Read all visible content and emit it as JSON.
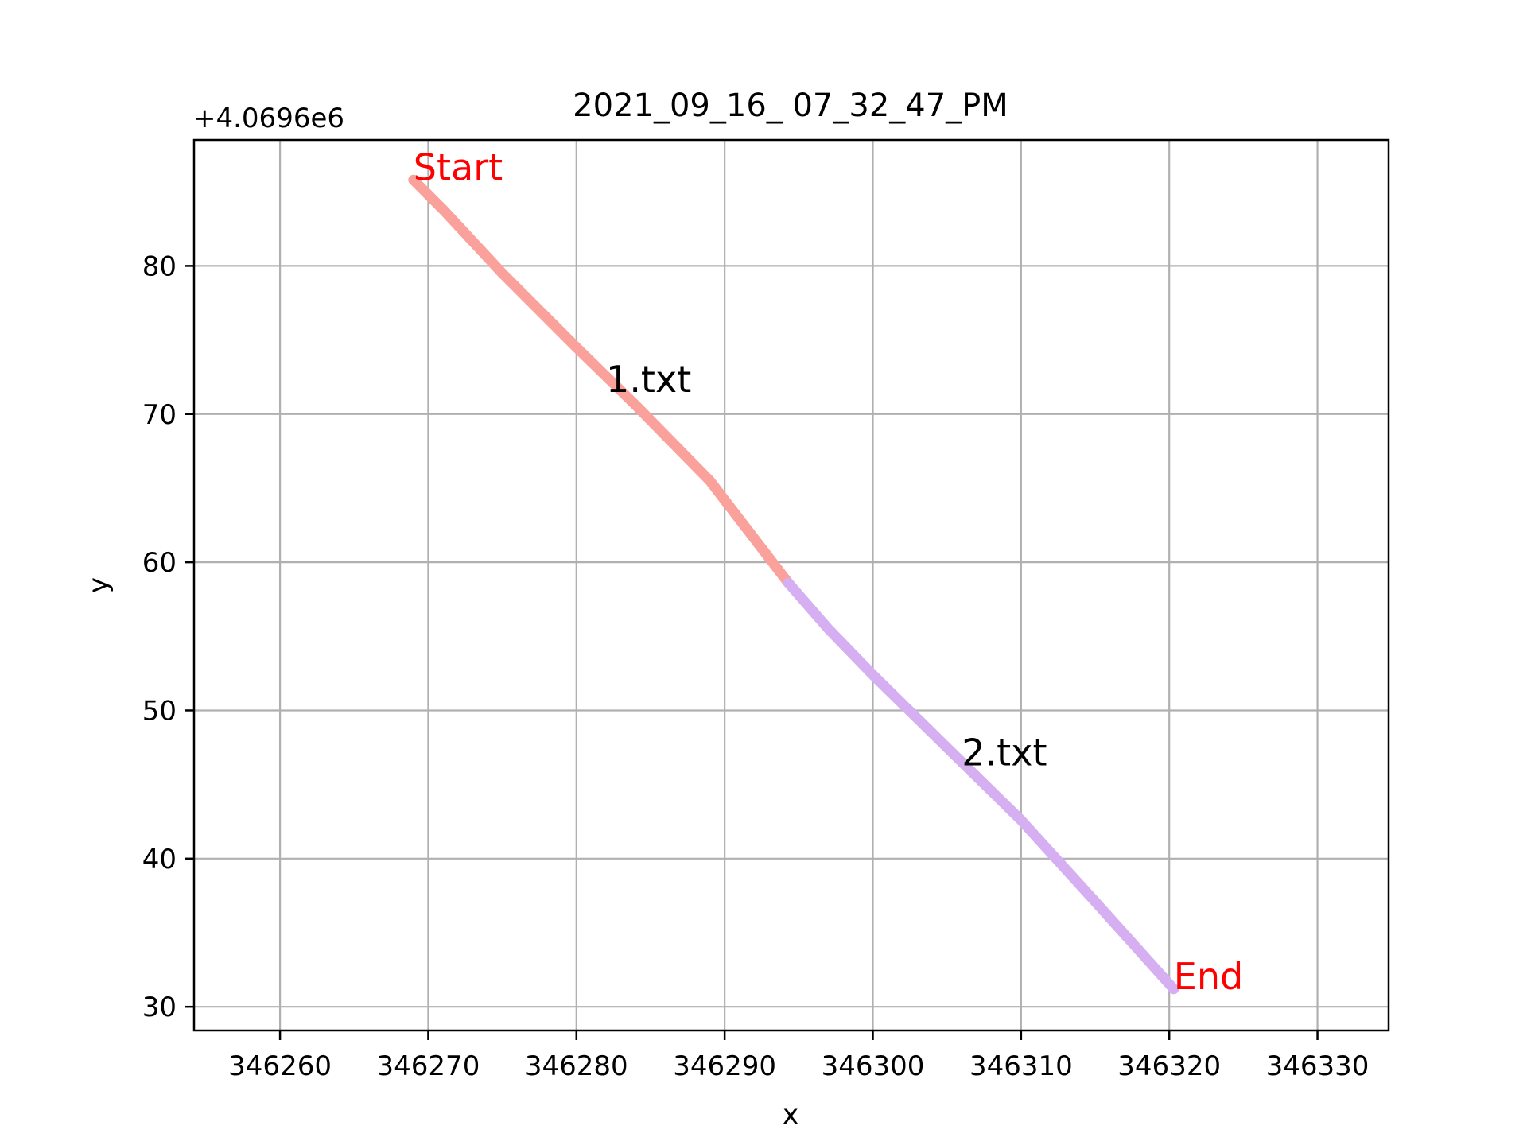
{
  "chart_data": {
    "type": "line",
    "title": "2021_09_16_ 07_32_47_PM",
    "xlabel": "x",
    "ylabel": "y",
    "y_offset_label": "+4.0696e6",
    "xlim": [
      346254.2,
      346334.8
    ],
    "ylim": [
      28.4,
      88.5
    ],
    "x_ticks": [
      346260,
      346270,
      346280,
      346290,
      346300,
      346310,
      346320,
      346330
    ],
    "y_ticks": [
      30,
      40,
      50,
      60,
      70,
      80
    ],
    "grid": true,
    "series": [
      {
        "name": "1.txt",
        "color": "#f9a19a",
        "x": [
          346269.0,
          346271.0,
          346275.0,
          346280.0,
          346284.0,
          346289.0,
          346294.3
        ],
        "y": [
          85.8,
          83.8,
          79.5,
          74.5,
          70.6,
          65.5,
          58.6
        ]
      },
      {
        "name": "2.txt",
        "color": "#d5aff1",
        "x": [
          346294.3,
          346297.0,
          346300.0,
          346305.0,
          346310.0,
          346315.0,
          346320.3
        ],
        "y": [
          58.6,
          55.5,
          52.4,
          47.5,
          42.6,
          37.1,
          31.2
        ]
      }
    ],
    "annotations": [
      {
        "text": "Start",
        "x": 346269.0,
        "y": 85.8,
        "color": "#ff0000"
      },
      {
        "text": "End",
        "x": 346320.3,
        "y": 31.2,
        "color": "#ff0000"
      },
      {
        "text": "1.txt",
        "x": 346282.0,
        "y": 71.5,
        "color": "#000000"
      },
      {
        "text": "2.txt",
        "x": 346306.0,
        "y": 46.3,
        "color": "#000000"
      }
    ]
  }
}
